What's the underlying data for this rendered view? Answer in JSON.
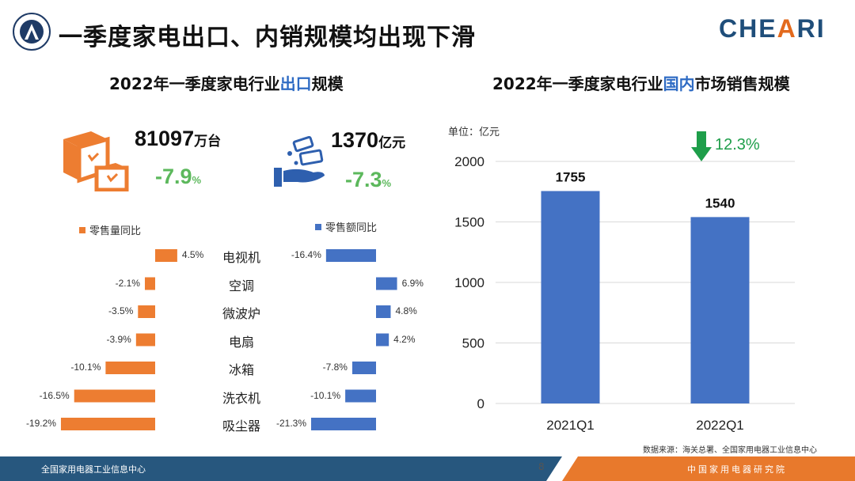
{
  "header": {
    "title": "一季度家电出口、内销规模均出现下滑",
    "brand_left": "CHE",
    "brand_mid": "A",
    "brand_right": "RI"
  },
  "export_section": {
    "title_pre": "2022年一季度家电行业",
    "title_hl": "出口",
    "title_post": "规模",
    "volume": {
      "value": "81097",
      "unit": "万台",
      "change": "-7.9",
      "change_unit": "%"
    },
    "amount": {
      "value": "1370",
      "unit": "亿元",
      "change": "-7.3",
      "change_unit": "%"
    }
  },
  "retail": {
    "legend_left": "零售量同比",
    "legend_right": "零售额同比",
    "categories": [
      "电视机",
      "空调",
      "微波炉",
      "电扇",
      "冰箱",
      "洗衣机",
      "吸尘器"
    ],
    "volume_yoy": [
      4.5,
      -2.1,
      -3.5,
      -3.9,
      -10.1,
      -16.5,
      -19.2
    ],
    "amount_yoy": [
      -16.4,
      6.9,
      4.8,
      4.2,
      -7.8,
      -10.1,
      -21.3
    ],
    "volume_labels": [
      "4.5%",
      "-2.1%",
      "-3.5%",
      "-3.9%",
      "-10.1%",
      "-16.5%",
      "-19.2%"
    ],
    "amount_labels": [
      "-16.4%",
      "6.9%",
      "4.8%",
      "4.2%",
      "-7.8%",
      "-10.1%",
      "-21.3%"
    ],
    "colors": {
      "volume": "#ed7d31",
      "amount": "#4472c4"
    }
  },
  "domestic": {
    "title_pre": "2022年一季度家电行业",
    "title_hl": "国内",
    "title_post": "市场销售规模",
    "unit": "单位：亿元",
    "decline_label": "12.3%",
    "source": "数据来源：海关总署、全国家用电器工业信息中心"
  },
  "chart_data": {
    "type": "bar",
    "categories": [
      "2021Q1",
      "2022Q1"
    ],
    "values": [
      1755,
      1540
    ],
    "value_labels": [
      "1755",
      "1540"
    ],
    "ylim": [
      0,
      2000
    ],
    "yticks": [
      "0",
      "500",
      "1000",
      "1500",
      "2000"
    ],
    "color": "#4472c4",
    "grid": true
  },
  "footer": {
    "left": "全国家用电器工业信息中心",
    "right": "中国家用电器研究院",
    "page": "8"
  }
}
